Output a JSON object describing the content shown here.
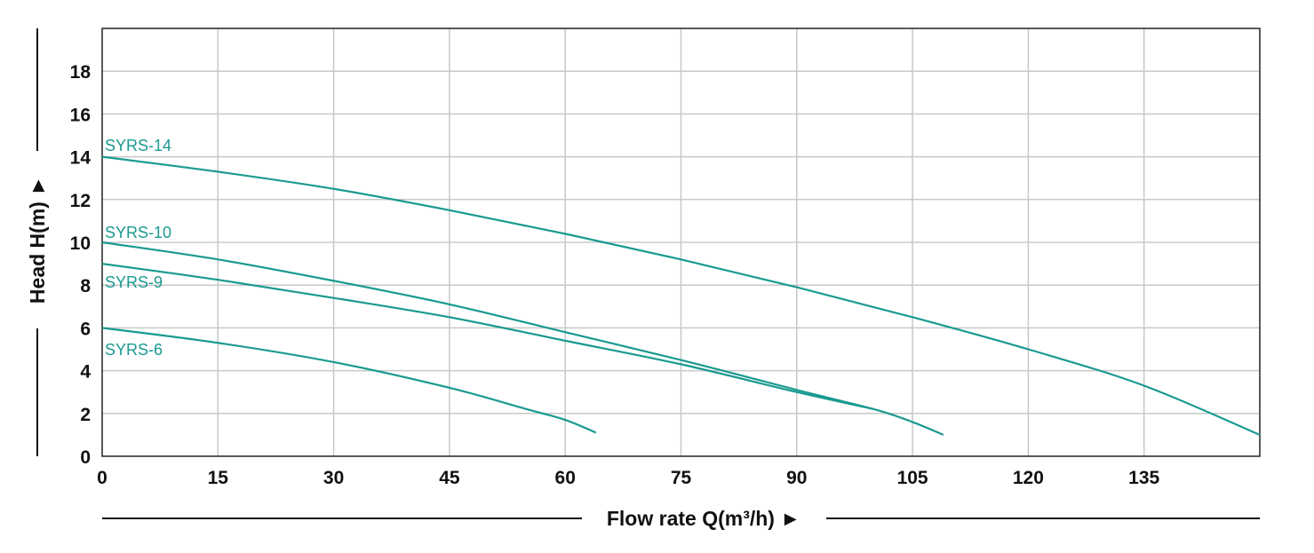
{
  "chart_data": {
    "type": "line",
    "title": "",
    "xlabel": "Flow rate Q(m³/h) ►",
    "ylabel": "Head H(m) ►",
    "xlim": [
      0,
      150
    ],
    "ylim": [
      0,
      20
    ],
    "xticks": [
      0,
      15,
      30,
      45,
      60,
      75,
      90,
      105,
      120,
      135
    ],
    "yticks": [
      0,
      2,
      4,
      6,
      8,
      10,
      12,
      14,
      16,
      18
    ],
    "grid": true,
    "line_color": "#1a9a90",
    "series": [
      {
        "name": "SYRS-14",
        "x": [
          0,
          15,
          30,
          45,
          60,
          75,
          90,
          105,
          120,
          135,
          150
        ],
        "y": [
          14,
          13.3,
          12.5,
          11.5,
          10.4,
          9.2,
          7.9,
          6.5,
          5.0,
          3.3,
          1.0
        ]
      },
      {
        "name": "SYRS-10",
        "x": [
          0,
          15,
          30,
          45,
          60,
          75,
          90,
          100,
          105,
          109
        ],
        "y": [
          10,
          9.2,
          8.2,
          7.1,
          5.8,
          4.5,
          3.1,
          2.2,
          1.6,
          1.0
        ]
      },
      {
        "name": "SYRS-9",
        "x": [
          0,
          15,
          30,
          45,
          60,
          75,
          90,
          100
        ],
        "y": [
          9,
          8.25,
          7.4,
          6.5,
          5.4,
          4.3,
          3.0,
          2.2
        ]
      },
      {
        "name": "SYRS-6",
        "x": [
          0,
          15,
          30,
          45,
          55,
          60,
          64
        ],
        "y": [
          6,
          5.3,
          4.4,
          3.2,
          2.2,
          1.7,
          1.1
        ]
      }
    ]
  }
}
